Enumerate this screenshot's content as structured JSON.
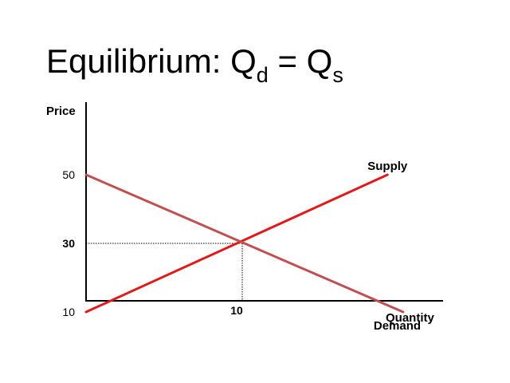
{
  "slide": {
    "title_main": "Equilibrium: Q",
    "title_sub_1": "d",
    "title_mid": " = Q",
    "title_sub_2": "s"
  },
  "chart_data": {
    "type": "line",
    "ylabel": "Price",
    "xlabel": "Quantity",
    "y_ticks": [
      {
        "value": 50,
        "label": "50",
        "bold": false
      },
      {
        "value": 30,
        "label": "30",
        "bold": true
      },
      {
        "value": 10,
        "label": "10",
        "bold": false
      }
    ],
    "x_ticks": [
      {
        "value": 10,
        "label": "10",
        "bold": true
      }
    ],
    "xlim": [
      0,
      20
    ],
    "ylim": [
      0,
      60
    ],
    "series": [
      {
        "name": "Supply",
        "color": "#e01a1a",
        "x": [
          0,
          19.3
        ],
        "y": [
          10,
          50
        ]
      },
      {
        "name": "Demand",
        "color": "#c05050",
        "x": [
          0,
          20.3
        ],
        "y": [
          50,
          10
        ]
      }
    ],
    "equilibrium": {
      "x": 10,
      "y": 30,
      "guide_style": "dotted"
    },
    "grid": false,
    "legend": "none"
  }
}
